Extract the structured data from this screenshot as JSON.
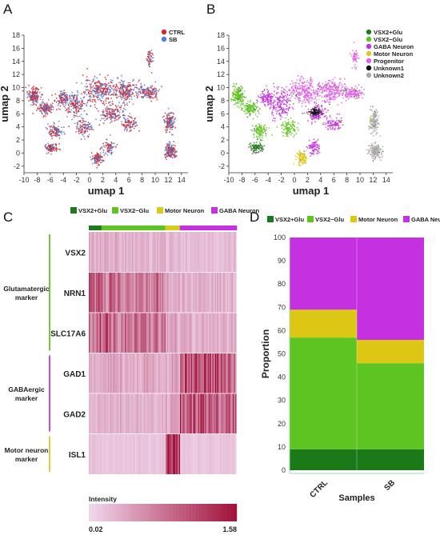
{
  "panels": {
    "A": "A",
    "B": "B",
    "C": "C",
    "D": "D"
  },
  "chart_data": [
    {
      "id": "A",
      "type": "scatter",
      "title": "",
      "xlabel": "umap 1",
      "ylabel": "umap 2",
      "xlim": [
        -10,
        15
      ],
      "ylim": [
        -3,
        18
      ],
      "xticks": [
        -10,
        -8,
        -6,
        -4,
        -2,
        0,
        2,
        4,
        6,
        8,
        10,
        12,
        14
      ],
      "yticks": [
        -2,
        0,
        2,
        4,
        6,
        8,
        10,
        12,
        14,
        16,
        18
      ],
      "legend_position": "top-right",
      "series": [
        {
          "name": "CTRL",
          "color": "#d62728"
        },
        {
          "name": "SB",
          "color": "#4f7fd6"
        }
      ],
      "clusters": [
        {
          "cx": -8.5,
          "cy": 8.8,
          "sx": 0.8,
          "sy": 1.0,
          "n": 170
        },
        {
          "cx": -6.8,
          "cy": 6.8,
          "sx": 0.9,
          "sy": 0.8,
          "n": 130
        },
        {
          "cx": -4.2,
          "cy": 8.3,
          "sx": 0.9,
          "sy": 0.9,
          "n": 110
        },
        {
          "cx": -2.2,
          "cy": 7.5,
          "sx": 1.4,
          "sy": 1.7,
          "n": 180
        },
        {
          "cx": 1.5,
          "cy": 9.5,
          "sx": 2.0,
          "sy": 1.6,
          "n": 260
        },
        {
          "cx": 5.5,
          "cy": 9.5,
          "sx": 1.8,
          "sy": 1.4,
          "n": 220
        },
        {
          "cx": 9.0,
          "cy": 9.2,
          "sx": 1.3,
          "sy": 0.8,
          "n": 140
        },
        {
          "cx": 3.5,
          "cy": 6.0,
          "sx": 1.4,
          "sy": 1.2,
          "n": 150
        },
        {
          "cx": -5.2,
          "cy": 3.3,
          "sx": 0.9,
          "sy": 0.9,
          "n": 110
        },
        {
          "cx": -5.8,
          "cy": 0.8,
          "sx": 0.8,
          "sy": 0.6,
          "n": 100
        },
        {
          "cx": -0.8,
          "cy": 3.8,
          "sx": 1.0,
          "sy": 1.0,
          "n": 100
        },
        {
          "cx": 1.2,
          "cy": -0.8,
          "sx": 0.7,
          "sy": 0.8,
          "n": 110
        },
        {
          "cx": 3.0,
          "cy": 0.8,
          "sx": 0.8,
          "sy": 0.9,
          "n": 80
        },
        {
          "cx": 6.0,
          "cy": 4.5,
          "sx": 1.1,
          "sy": 0.9,
          "n": 90
        },
        {
          "cx": 9.2,
          "cy": 14.5,
          "sx": 0.4,
          "sy": 1.2,
          "n": 50
        },
        {
          "cx": 12.2,
          "cy": 4.8,
          "sx": 0.6,
          "sy": 1.3,
          "n": 140
        },
        {
          "cx": 12.3,
          "cy": 0.3,
          "sx": 0.7,
          "sy": 0.9,
          "n": 170
        }
      ]
    },
    {
      "id": "B",
      "type": "scatter",
      "title": "",
      "xlabel": "umap 1",
      "ylabel": "umap 2",
      "xlim": [
        -10,
        15
      ],
      "ylim": [
        -3,
        18
      ],
      "xticks": [
        -10,
        -8,
        -6,
        -4,
        -2,
        0,
        2,
        4,
        6,
        8,
        10,
        12,
        14
      ],
      "yticks": [
        -2,
        0,
        2,
        4,
        6,
        8,
        10,
        12,
        14,
        16,
        18
      ],
      "legend_position": "top-right",
      "series": [
        {
          "name": "VSX2+Glu",
          "color": "#1f7a1f"
        },
        {
          "name": "VSX2−Glu",
          "color": "#5ec422"
        },
        {
          "name": "GABA Neuron",
          "color": "#c531e0"
        },
        {
          "name": "Motor Neuron",
          "color": "#d9cb1d"
        },
        {
          "name": "Progenitor",
          "color": "#e15fe8"
        },
        {
          "name": "Unknown1",
          "color": "#111111"
        },
        {
          "name": "Unknown2",
          "color": "#a9a9a9"
        }
      ],
      "clusters": [
        {
          "cx": -8.5,
          "cy": 8.8,
          "sx": 0.8,
          "sy": 1.0,
          "n": 170,
          "s": 1
        },
        {
          "cx": -6.8,
          "cy": 6.8,
          "sx": 0.9,
          "sy": 0.8,
          "n": 130,
          "s": 1
        },
        {
          "cx": -4.2,
          "cy": 8.3,
          "sx": 0.9,
          "sy": 0.9,
          "n": 110,
          "s": 2
        },
        {
          "cx": -2.2,
          "cy": 7.5,
          "sx": 1.4,
          "sy": 1.7,
          "n": 180,
          "s": 2
        },
        {
          "cx": 1.5,
          "cy": 9.5,
          "sx": 2.0,
          "sy": 1.6,
          "n": 260,
          "s": 4
        },
        {
          "cx": 5.5,
          "cy": 9.5,
          "sx": 1.8,
          "sy": 1.4,
          "n": 220,
          "s": 4
        },
        {
          "cx": 9.0,
          "cy": 9.2,
          "sx": 1.3,
          "sy": 0.8,
          "n": 140,
          "s": 4
        },
        {
          "cx": 3.5,
          "cy": 6.0,
          "sx": 1.4,
          "sy": 1.2,
          "n": 150,
          "s": 2
        },
        {
          "cx": 3.2,
          "cy": 6.3,
          "sx": 0.6,
          "sy": 0.4,
          "n": 80,
          "s": 5
        },
        {
          "cx": -5.2,
          "cy": 3.3,
          "sx": 0.9,
          "sy": 0.9,
          "n": 110,
          "s": 1
        },
        {
          "cx": -5.8,
          "cy": 0.8,
          "sx": 0.8,
          "sy": 0.6,
          "n": 100,
          "s": 0
        },
        {
          "cx": -0.8,
          "cy": 3.8,
          "sx": 1.0,
          "sy": 1.0,
          "n": 100,
          "s": 1
        },
        {
          "cx": 1.2,
          "cy": -0.8,
          "sx": 0.7,
          "sy": 0.8,
          "n": 110,
          "s": 3
        },
        {
          "cx": 3.0,
          "cy": 0.8,
          "sx": 0.8,
          "sy": 0.9,
          "n": 80,
          "s": 2
        },
        {
          "cx": 6.0,
          "cy": 4.5,
          "sx": 1.1,
          "sy": 0.9,
          "n": 90,
          "s": 2
        },
        {
          "cx": 9.2,
          "cy": 14.5,
          "sx": 0.4,
          "sy": 1.2,
          "n": 50,
          "s": 4
        },
        {
          "cx": 12.2,
          "cy": 4.8,
          "sx": 0.6,
          "sy": 1.3,
          "n": 140,
          "s": 6
        },
        {
          "cx": 12.3,
          "cy": 0.3,
          "sx": 0.7,
          "sy": 0.9,
          "n": 170,
          "s": 6
        }
      ]
    },
    {
      "id": "C",
      "type": "heatmap",
      "title": "",
      "legend": [
        {
          "name": "VSX2+Glu",
          "color": "#1f7a1f"
        },
        {
          "name": "VSX2−Glu",
          "color": "#5ec422"
        },
        {
          "name": "Motor Neuron",
          "color": "#d9cb1d"
        },
        {
          "name": "GABA Neuron",
          "color": "#c531e0"
        }
      ],
      "cell_groups": [
        {
          "name": "VSX2+Glu",
          "fraction": 0.085
        },
        {
          "name": "VSX2−Glu",
          "fraction": 0.43
        },
        {
          "name": "Motor Neuron",
          "fraction": 0.1
        },
        {
          "name": "GABA Neuron",
          "fraction": 0.385
        }
      ],
      "genes": [
        "VSX2",
        "NRN1",
        "SLC17A6",
        "GAD1",
        "GAD2",
        "ISL1"
      ],
      "marker_groups": [
        {
          "label": [
            "Glutamatergic",
            "marker"
          ],
          "genes": [
            "VSX2",
            "NRN1",
            "SLC17A6"
          ],
          "color": "#5ec422"
        },
        {
          "label": [
            "GABAergic",
            "marker"
          ],
          "genes": [
            "GAD1",
            "GAD2"
          ],
          "color": "#c531e0"
        },
        {
          "label": [
            "Motor neuron",
            "marker"
          ],
          "genes": [
            "ISL1"
          ],
          "color": "#d9cb1d"
        }
      ],
      "mean_intensity": [
        [
          0.35,
          0.3,
          0.25,
          0.2
        ],
        [
          1.0,
          0.75,
          0.35,
          0.3
        ],
        [
          0.95,
          0.85,
          0.4,
          0.3
        ],
        [
          0.3,
          0.35,
          0.4,
          1.05
        ],
        [
          0.25,
          0.3,
          0.4,
          1.0
        ],
        [
          0.15,
          0.15,
          1.45,
          0.15
        ]
      ],
      "colorbar": {
        "label": "Intensity",
        "min": 0.02,
        "max": 1.58,
        "min_label": "0.02",
        "max_label": "1.58",
        "low_color": "#f0d6ec",
        "high_color": "#a3123c"
      }
    },
    {
      "id": "D",
      "type": "bar",
      "stacked": true,
      "title": "",
      "xlabel": "Samples",
      "ylabel": "Proportion",
      "categories": [
        "CTRL",
        "SB"
      ],
      "ylim": [
        0,
        100
      ],
      "yticks": [
        0,
        10,
        20,
        30,
        40,
        50,
        60,
        70,
        80,
        90,
        100
      ],
      "legend_position": "top",
      "series": [
        {
          "name": "VSX2+Glu",
          "color": "#1a7a1a",
          "values": [
            9,
            9
          ]
        },
        {
          "name": "VSX2−Glu",
          "color": "#5ec422",
          "values": [
            48,
            37
          ]
        },
        {
          "name": "Motor Neuron",
          "color": "#dcc714",
          "values": [
            12,
            10
          ]
        },
        {
          "name": "GABA Neuron",
          "color": "#c531e0",
          "values": [
            31,
            44
          ]
        }
      ]
    }
  ]
}
